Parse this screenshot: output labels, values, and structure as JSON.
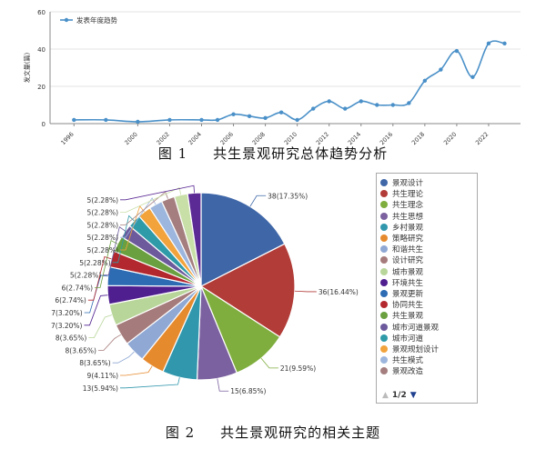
{
  "chart_data": [
    {
      "type": "line",
      "legend": {
        "label": "发表年度趋势",
        "position": "top-left"
      },
      "xlabel": "",
      "ylabel": "发文量(篇)",
      "x": [
        1996,
        1998,
        2000,
        2002,
        2004,
        2005,
        2006,
        2007,
        2008,
        2009,
        2010,
        2011,
        2012,
        2013,
        2014,
        2015,
        2016,
        2017,
        2018,
        2019,
        2020,
        2021,
        2022,
        2023
      ],
      "values": [
        2,
        2,
        1,
        2,
        2,
        2,
        5,
        4,
        3,
        6,
        2,
        8,
        12,
        8,
        12,
        10,
        10,
        11,
        23,
        29,
        39,
        25,
        43,
        43
      ],
      "x_tick_labels": [
        "1996",
        "2000",
        "2002",
        "2004",
        "2006",
        "2008",
        "2010",
        "2012",
        "2014",
        "2016",
        "2018",
        "2020",
        "2022"
      ],
      "x_range": [
        1994.5,
        2024
      ],
      "ylim": [
        0,
        60
      ],
      "y_ticks": [
        "0",
        "20",
        "40",
        "60"
      ],
      "grid": "horizontal",
      "color": "#4a90c8"
    },
    {
      "type": "pie",
      "slices": [
        {
          "name": "景观设计",
          "value": 38,
          "percent": "17.35%",
          "label": "38(17.35%)",
          "color": "#3f67a8"
        },
        {
          "name": "共生理论",
          "value": 36,
          "percent": "16.44%",
          "label": "36(16.44%)",
          "color": "#b23c38"
        },
        {
          "name": "共生理念",
          "value": 21,
          "percent": "9.59%",
          "label": "21(9.59%)",
          "color": "#7fae3e"
        },
        {
          "name": "共生思想",
          "value": 15,
          "percent": "6.85%",
          "label": "15(6.85%)",
          "color": "#7b619f"
        },
        {
          "name": "乡村景观",
          "value": 13,
          "percent": "5.94%",
          "label": "13(5.94%)",
          "color": "#3197ad"
        },
        {
          "name": "策略研究",
          "value": 9,
          "percent": "4.11%",
          "label": "9(4.11%)",
          "color": "#e68a2e"
        },
        {
          "name": "和谐共生",
          "value": 8,
          "percent": "3.65%",
          "label": "8(3.65%)",
          "color": "#8fa8d4"
        },
        {
          "name": "设计研究",
          "value": 8,
          "percent": "3.65%",
          "label": "8(3.65%)",
          "color": "#a67b7b"
        },
        {
          "name": "城市景观",
          "value": 8,
          "percent": "3.65%",
          "label": "8(3.65%)",
          "color": "#b9d69a"
        },
        {
          "name": "环境共生",
          "value": 7,
          "percent": "3.20%",
          "label": "7(3.20%)",
          "color": "#4f1f8f"
        },
        {
          "name": "景观更新",
          "value": 7,
          "percent": "3.20%",
          "label": "7(3.20%)",
          "color": "#2d6bb3"
        },
        {
          "name": "协同共生",
          "value": 6,
          "percent": "2.74%",
          "label": "6(2.74%)",
          "color": "#b3282e"
        },
        {
          "name": "共生景观",
          "value": 6,
          "percent": "2.74%",
          "label": "6(2.74%)",
          "color": "#6aa040"
        },
        {
          "name": "城市河道景观",
          "value": 5,
          "percent": "2.28%",
          "label": "5(2.28%)",
          "color": "#6c5a9c"
        },
        {
          "name": "城市河道",
          "value": 5,
          "percent": "2.28%",
          "label": "5(2.28%)",
          "color": "#2f9aa8"
        },
        {
          "name": "景观规划设计",
          "value": 5,
          "percent": "2.28%",
          "label": "5(2.28%)",
          "color": "#f2a33c"
        },
        {
          "name": "共生模式",
          "value": 5,
          "percent": "2.28%",
          "label": "5(2.28%)",
          "color": "#9db6dd"
        },
        {
          "name": "景观改造",
          "value": 5,
          "percent": "2.28%",
          "label": "5(2.28%)",
          "color": "#a57f7f"
        },
        {
          "name": "",
          "value": 5,
          "percent": "2.28%",
          "label": "5(2.28%)",
          "color": "#c9dfa8"
        },
        {
          "name": "",
          "value": 5,
          "percent": "2.28%",
          "label": "5(2.28%)",
          "color": "#5b2a95"
        }
      ],
      "legend_position": "right",
      "legend_page": "1/2"
    }
  ],
  "captions": {
    "fig1_num": "图 1",
    "fig1_text": "共生景观研究总体趋势分析",
    "fig2_num": "图 2",
    "fig2_text": "共生景观研究的相关主题"
  }
}
